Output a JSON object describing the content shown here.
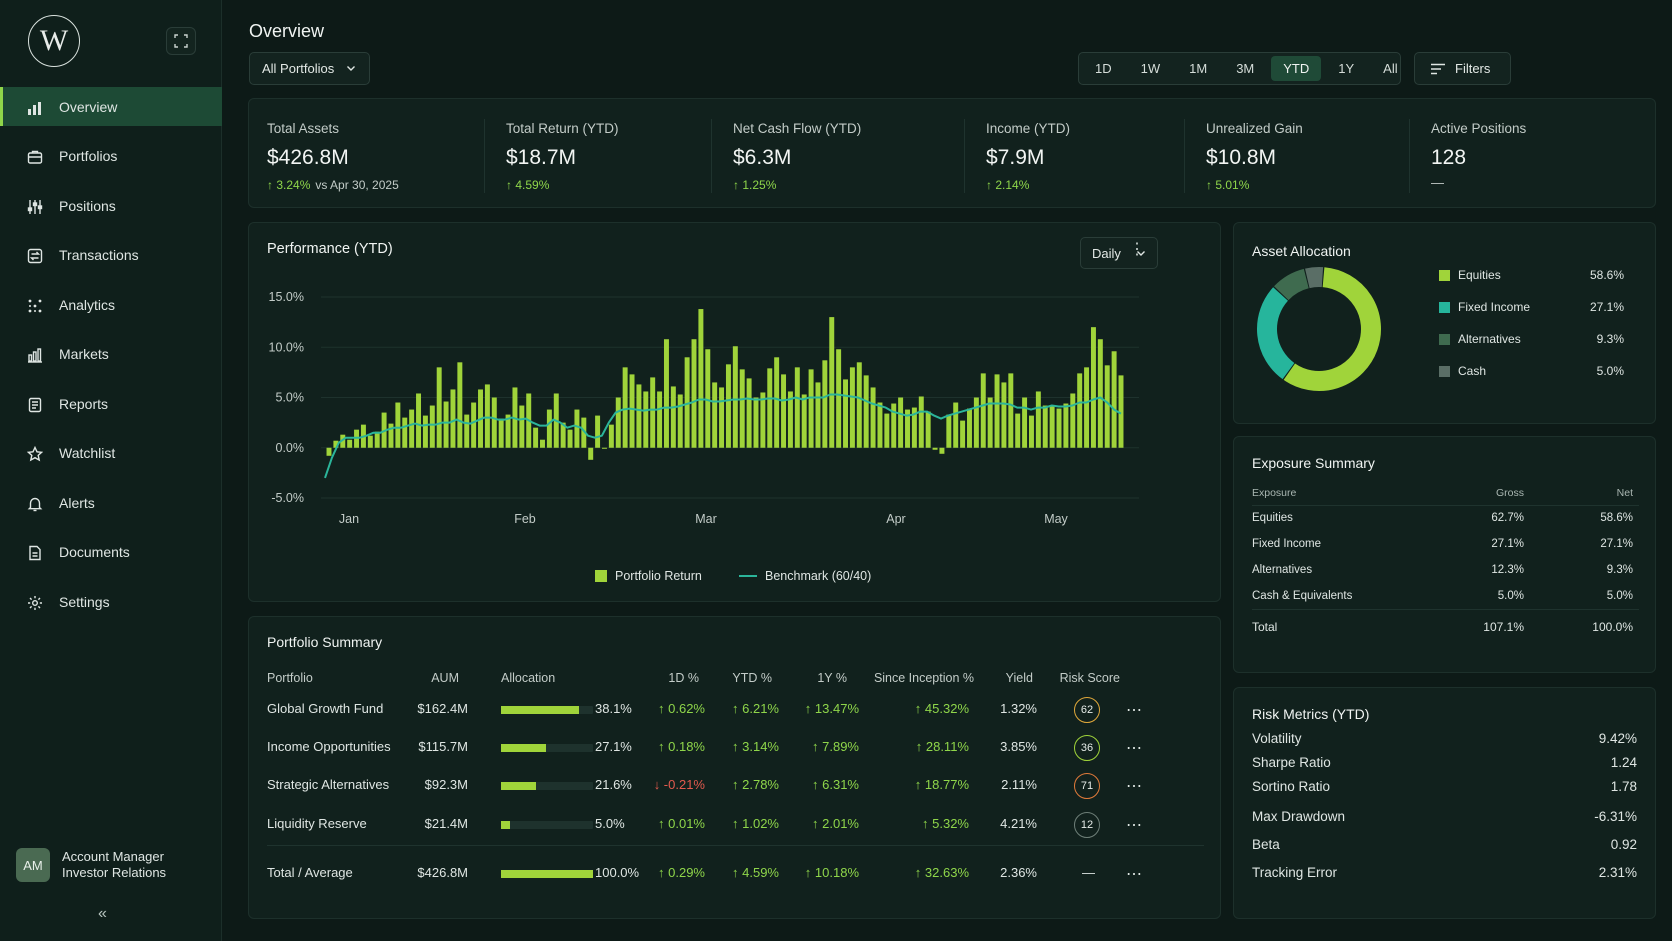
{
  "app": {
    "logo_letter": "W"
  },
  "sidebar": {
    "items": [
      {
        "label": "Overview",
        "icon": "bar-chart-icon",
        "active": true
      },
      {
        "label": "Portfolios",
        "icon": "briefcase-icon",
        "active": false
      },
      {
        "label": "Positions",
        "icon": "sliders-icon",
        "active": false
      },
      {
        "label": "Transactions",
        "icon": "transactions-icon",
        "active": false
      },
      {
        "label": "Analytics",
        "icon": "scatter-icon",
        "active": false
      },
      {
        "label": "Markets",
        "icon": "markets-icon",
        "active": false
      },
      {
        "label": "Reports",
        "icon": "report-icon",
        "active": false
      },
      {
        "label": "Watchlist",
        "icon": "star-icon",
        "active": false
      },
      {
        "label": "Alerts",
        "icon": "bell-icon",
        "active": false
      },
      {
        "label": "Documents",
        "icon": "document-icon",
        "active": false
      },
      {
        "label": "Settings",
        "icon": "gear-icon",
        "active": false
      }
    ],
    "user": {
      "initials": "AM",
      "name": "Account Manager",
      "role": "Investor Relations"
    }
  },
  "header": {
    "title": "Overview",
    "portfolio_select": "All Portfolios",
    "ranges": [
      "1D",
      "1W",
      "1M",
      "3M",
      "YTD",
      "1Y",
      "All"
    ],
    "active_range": "YTD",
    "filters_label": "Filters"
  },
  "kpis": [
    {
      "label": "Total Assets",
      "value": "$426.8M",
      "change": "↑ 3.24%",
      "suffix": "vs Apr 30, 2025"
    },
    {
      "label": "Total Return (YTD)",
      "value": "$18.7M",
      "change": "↑ 4.59%",
      "suffix": ""
    },
    {
      "label": "Net Cash Flow (YTD)",
      "value": "$6.3M",
      "change": "↑ 1.25%",
      "suffix": ""
    },
    {
      "label": "Income (YTD)",
      "value": "$7.9M",
      "change": "↑ 2.14%",
      "suffix": ""
    },
    {
      "label": "Unrealized Gain",
      "value": "$10.8M",
      "change": "↑ 5.01%",
      "suffix": ""
    },
    {
      "label": "Active Positions",
      "value": "128",
      "change": "—",
      "suffix": ""
    }
  ],
  "performance": {
    "title": "Performance (YTD)",
    "interval_select": "Daily",
    "legend": {
      "bars": "Portfolio Return",
      "line": "Benchmark (60/40)"
    }
  },
  "chart_data": {
    "type": "bar",
    "title": "Performance (YTD)",
    "ylim": [
      -5,
      15
    ],
    "yticks": [
      "15.0%",
      "10.0%",
      "5.0%",
      "0.0%",
      "-5.0%"
    ],
    "xticks": [
      "Jan",
      "Feb",
      "Mar",
      "Apr",
      "May"
    ],
    "grid": true,
    "legend_position": "bottom",
    "colors": {
      "bars": "#a0d43a",
      "line": "#2bb59a"
    },
    "series": [
      {
        "name": "Portfolio Return",
        "kind": "bar",
        "values": [
          -0.8,
          0.7,
          1.3,
          0.8,
          1.8,
          2.3,
          1.2,
          1.6,
          3.5,
          2.4,
          4.5,
          3.0,
          3.8,
          5.4,
          3.2,
          4.2,
          8.0,
          4.6,
          5.8,
          8.5,
          3.3,
          4.5,
          5.8,
          6.3,
          5.0,
          2.9,
          3.3,
          6.0,
          4.2,
          5.4,
          2.0,
          0.8,
          3.8,
          5.4,
          2.5,
          1.8,
          3.8,
          3.0,
          -1.2,
          3.2,
          0.0,
          2.3,
          5.0,
          8.0,
          7.3,
          6.3,
          5.6,
          7.0,
          5.6,
          10.8,
          6.1,
          5.3,
          9.0,
          10.8,
          13.8,
          9.8,
          6.5,
          6.0,
          8.3,
          10.1,
          7.8,
          6.9,
          5.0,
          5.5,
          7.9,
          9.0,
          7.3,
          5.6,
          8.0,
          5.3,
          7.8,
          6.5,
          8.7,
          13.0,
          9.8,
          6.8,
          8.0,
          8.5,
          7.2,
          6.0,
          4.5,
          3.4,
          4.4,
          5.0,
          3.8,
          4.0,
          5.1,
          3.6,
          -0.2,
          -0.6,
          3.3,
          4.5,
          2.7,
          3.9,
          5.0,
          7.4,
          5.0,
          7.3,
          6.5,
          7.4,
          3.4,
          5.0,
          3.2,
          5.6,
          4.2,
          4.2,
          3.9,
          4.4,
          5.4,
          7.4,
          8.0,
          12.0,
          10.8,
          8.2,
          9.6,
          7.2
        ]
      },
      {
        "name": "Benchmark (60/40)",
        "kind": "line",
        "values": [
          -3.0,
          -1.0,
          0.5,
          1.0,
          1.0,
          1.0,
          1.2,
          1.5,
          1.5,
          1.8,
          2.0,
          2.0,
          2.2,
          2.4,
          2.2,
          2.3,
          2.3,
          2.5,
          2.5,
          2.8,
          2.5,
          2.4,
          2.7,
          3.0,
          3.0,
          2.8,
          2.8,
          3.0,
          2.8,
          2.9,
          2.5,
          2.2,
          2.2,
          2.8,
          2.5,
          2.0,
          2.2,
          2.0,
          1.2,
          1.0,
          1.2,
          2.5,
          3.5,
          3.8,
          3.9,
          3.8,
          3.7,
          3.8,
          3.8,
          4.0,
          4.0,
          4.1,
          4.3,
          4.5,
          4.8,
          4.8,
          4.6,
          4.6,
          4.7,
          4.8,
          4.8,
          4.9,
          4.8,
          4.8,
          4.9,
          4.9,
          4.7,
          4.8,
          5.0,
          4.8,
          5.0,
          5.0,
          5.0,
          5.3,
          5.3,
          5.2,
          5.1,
          5.0,
          4.7,
          4.4,
          4.2,
          4.0,
          3.6,
          3.4,
          3.2,
          3.3,
          3.6,
          3.6,
          3.2,
          2.9,
          3.2,
          3.4,
          3.6,
          3.8,
          4.0,
          4.2,
          4.4,
          4.4,
          4.4,
          4.3,
          4.0,
          4.0,
          3.8,
          4.0,
          4.0,
          4.2,
          4.1,
          4.1,
          4.2,
          4.5,
          4.5,
          4.8,
          5.0,
          4.5,
          3.8,
          3.4
        ]
      }
    ]
  },
  "allocation": {
    "title": "Asset Allocation",
    "items": [
      {
        "label": "Equities",
        "pct": "58.6%",
        "value": 58.6,
        "color": "#a0d43a"
      },
      {
        "label": "Fixed Income",
        "pct": "27.1%",
        "value": 27.1,
        "color": "#26b59c"
      },
      {
        "label": "Alternatives",
        "pct": "9.3%",
        "value": 9.3,
        "color": "#3f6b4f"
      },
      {
        "label": "Cash",
        "pct": "5.0%",
        "value": 5.0,
        "color": "#5a6e66"
      }
    ]
  },
  "exposure": {
    "title": "Exposure Summary",
    "headers": [
      "Exposure",
      "Gross",
      "Net"
    ],
    "rows": [
      [
        "Equities",
        "62.7%",
        "58.6%"
      ],
      [
        "Fixed Income",
        "27.1%",
        "27.1%"
      ],
      [
        "Alternatives",
        "12.3%",
        "9.3%"
      ],
      [
        "Cash & Equivalents",
        "5.0%",
        "5.0%"
      ]
    ],
    "total": [
      "Total",
      "107.1%",
      "100.0%"
    ]
  },
  "risk": {
    "title": "Risk Metrics (YTD)",
    "rows": [
      {
        "label": "Volatility",
        "value": "9.42%"
      },
      {
        "label": "Sharpe Ratio",
        "value": "1.24"
      },
      {
        "label": "Sortino Ratio",
        "value": "1.78"
      },
      {
        "label": "Max Drawdown",
        "value": "-6.31%"
      },
      {
        "label": "Beta",
        "value": "0.92"
      },
      {
        "label": "Tracking Error",
        "value": "2.31%"
      }
    ]
  },
  "summary": {
    "title": "Portfolio Summary",
    "headers": [
      "Portfolio",
      "AUM",
      "Allocation",
      "1D %",
      "YTD %",
      "1Y %",
      "Since Inception %",
      "Yield",
      "Risk Score"
    ],
    "rows": [
      {
        "name": "Global Growth Fund",
        "aum": "$162.4M",
        "alloc": "38.1%",
        "alloc_value": 85,
        "d1": "↑ 0.62%",
        "d1_dir": "pos",
        "ytd": "↑ 6.21%",
        "y1": "↑ 13.47%",
        "si": "↑ 45.32%",
        "yield": "1.32%",
        "risk": "62",
        "risk_color": "#e0a83a"
      },
      {
        "name": "Income Opportunities",
        "aum": "$115.7M",
        "alloc": "27.1%",
        "alloc_value": 49,
        "d1": "↑ 0.18%",
        "d1_dir": "pos",
        "ytd": "↑ 3.14%",
        "y1": "↑ 7.89%",
        "si": "↑ 28.11%",
        "yield": "3.85%",
        "risk": "36",
        "risk_color": "#a0d43a"
      },
      {
        "name": "Strategic Alternatives",
        "aum": "$92.3M",
        "alloc": "21.6%",
        "alloc_value": 38,
        "d1": "↓ -0.21%",
        "d1_dir": "neg",
        "ytd": "↑ 2.78%",
        "y1": "↑ 6.31%",
        "si": "↑ 18.77%",
        "yield": "2.11%",
        "risk": "71",
        "risk_color": "#e07a3a"
      },
      {
        "name": "Liquidity Reserve",
        "aum": "$21.4M",
        "alloc": "5.0%",
        "alloc_value": 10,
        "d1": "↑ 0.01%",
        "d1_dir": "pos",
        "ytd": "↑ 1.02%",
        "y1": "↑ 2.01%",
        "si": "↑ 5.32%",
        "yield": "4.21%",
        "risk": "12",
        "risk_color": "#6e7f78"
      }
    ],
    "total": {
      "name": "Total / Average",
      "aum": "$426.8M",
      "alloc": "100.0%",
      "alloc_value": 100,
      "d1": "↑ 0.29%",
      "ytd": "↑ 4.59%",
      "y1": "↑ 10.18%",
      "si": "↑ 32.63%",
      "yield": "2.36%",
      "risk": "—"
    }
  }
}
